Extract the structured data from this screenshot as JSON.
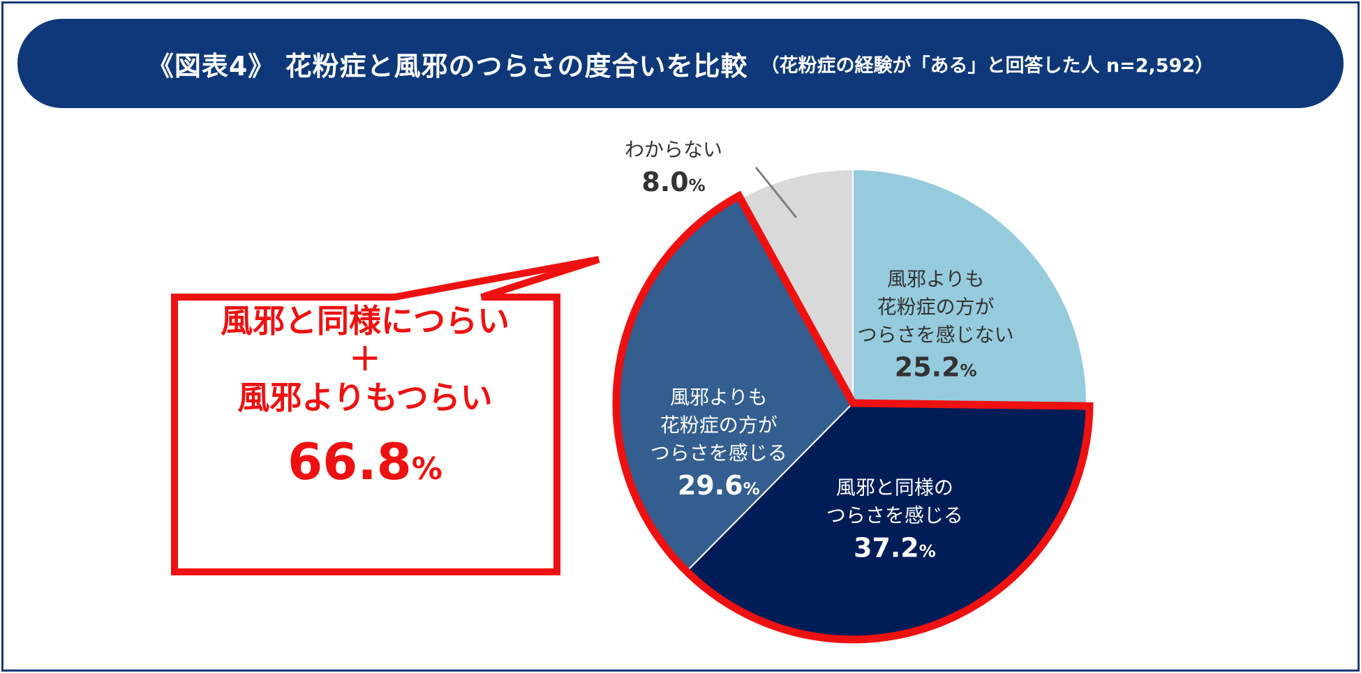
{
  "title": {
    "main": "《図表4》 花粉症と風邪のつらさの度合いを比較",
    "sub": "（花粉症の経験が「ある」と回答した人 n=2,592）"
  },
  "colors": {
    "title_bg": "#0e3879",
    "highlight": "#ee1111",
    "slice_light_blue": "#96cbdd",
    "slice_navy": "#001d57",
    "slice_mid_blue": "#345e8f",
    "slice_gray": "#d9d9d9"
  },
  "chart_data": {
    "type": "pie",
    "unit": "%",
    "slices": [
      {
        "label_lines": [
          "風邪よりも",
          "花粉症の方が",
          "つらさを感じない"
        ],
        "value": 25.2,
        "value_text": "25.2",
        "color": "#96cbdd",
        "text_color": "#333333",
        "highlighted": false
      },
      {
        "label_lines": [
          "風邪と同様の",
          "つらさを感じる"
        ],
        "value": 37.2,
        "value_text": "37.2",
        "color": "#001d57",
        "text_color": "#ffffff",
        "highlighted": true
      },
      {
        "label_lines": [
          "風邪よりも",
          "花粉症の方が",
          "つらさを感じる"
        ],
        "value": 29.6,
        "value_text": "29.6",
        "color": "#345e8f",
        "text_color": "#ffffff",
        "highlighted": true
      },
      {
        "label_lines": [
          "わからない"
        ],
        "value": 8.0,
        "value_text": "8.0",
        "color": "#d9d9d9",
        "text_color": "#333333",
        "highlighted": false
      }
    ]
  },
  "callout": {
    "line1": "風邪と同様につらい",
    "plus": "＋",
    "line2": "風邪よりもつらい",
    "value": "66.8",
    "unit": "%"
  }
}
